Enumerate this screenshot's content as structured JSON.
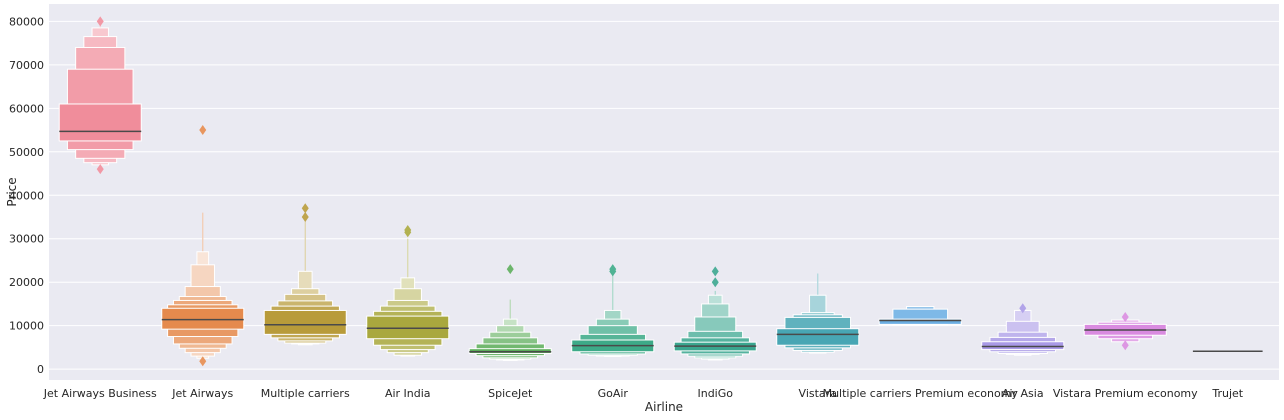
{
  "chart_data": {
    "type": "boxen",
    "xlabel": "Airline",
    "ylabel": "Price",
    "ylim": [
      -2500,
      84000
    ],
    "yticks": [
      0,
      10000,
      20000,
      30000,
      40000,
      50000,
      60000,
      70000,
      80000
    ],
    "grid": true,
    "legend": "none",
    "categories": [
      {
        "name": "Jet Airways Business",
        "color": "#f08d9b",
        "median": 54700,
        "levels": [
          [
            52500,
            61000
          ],
          [
            50500,
            69000
          ],
          [
            48500,
            74000
          ],
          [
            47500,
            76500
          ],
          [
            47000,
            78500
          ]
        ],
        "outliers": [
          46000,
          80000
        ],
        "whisker_max": 79500
      },
      {
        "name": "Jet Airways",
        "color": "#e58a4d",
        "median": 11400,
        "levels": [
          [
            9200,
            14000
          ],
          [
            7500,
            14800
          ],
          [
            5800,
            15800
          ],
          [
            4800,
            16700
          ],
          [
            3800,
            19000
          ],
          [
            3000,
            24000
          ],
          [
            2500,
            27000
          ]
        ],
        "outliers": [
          1800,
          55000
        ],
        "whisker_max": 36000
      },
      {
        "name": "Multiple carriers",
        "color": "#b89b3a",
        "median": 10200,
        "levels": [
          [
            8000,
            13500
          ],
          [
            7200,
            14500
          ],
          [
            6500,
            15700
          ],
          [
            6000,
            17200
          ],
          [
            5800,
            18500
          ],
          [
            5600,
            22500
          ]
        ],
        "outliers": [
          35000,
          37000
        ],
        "whisker_max": 34000
      },
      {
        "name": "Air India",
        "color": "#a9a83e",
        "median": 9400,
        "levels": [
          [
            7000,
            12200
          ],
          [
            5500,
            13300
          ],
          [
            4500,
            14500
          ],
          [
            3800,
            15800
          ],
          [
            3200,
            18500
          ],
          [
            3000,
            21000
          ]
        ],
        "outliers": [
          31500,
          32000
        ],
        "whisker_max": 30000
      },
      {
        "name": "SpiceJet",
        "color": "#5cad5a",
        "median": 4000,
        "levels": [
          [
            3600,
            4700
          ],
          [
            3100,
            5800
          ],
          [
            2600,
            7200
          ],
          [
            2300,
            8500
          ],
          [
            2100,
            10000
          ],
          [
            2000,
            11500
          ]
        ],
        "outliers": [
          23000
        ],
        "whisker_max": 16000
      },
      {
        "name": "GoAir",
        "color": "#3daa88",
        "median": 5400,
        "levels": [
          [
            4000,
            6700
          ],
          [
            3500,
            8000
          ],
          [
            3200,
            10000
          ],
          [
            3000,
            11500
          ],
          [
            2900,
            13500
          ]
        ],
        "outliers": [
          22500,
          23000
        ],
        "whisker_max": 22000
      },
      {
        "name": "IndiGo",
        "color": "#3aa68f",
        "median": 5300,
        "levels": [
          [
            4200,
            6200
          ],
          [
            3500,
            7200
          ],
          [
            3000,
            8700
          ],
          [
            2600,
            12000
          ],
          [
            2300,
            15000
          ],
          [
            2100,
            17000
          ]
        ],
        "outliers": [
          20000,
          22500
        ],
        "whisker_max": 18000
      },
      {
        "name": "Vistara",
        "color": "#48a6b4",
        "median": 8000,
        "levels": [
          [
            5500,
            9300
          ],
          [
            4900,
            11900
          ],
          [
            4300,
            12500
          ],
          [
            3900,
            13000
          ],
          [
            3700,
            17000
          ]
        ],
        "outliers": [],
        "whisker_max": 22000
      },
      {
        "name": "Multiple carriers Premium economy",
        "color": "#6baee3",
        "median": 11200,
        "levels": [
          [
            10300,
            11500
          ],
          [
            10200,
            13800
          ],
          [
            10100,
            14400
          ]
        ],
        "outliers": [],
        "whisker_max": 14400
      },
      {
        "name": "Air Asia",
        "color": "#a99ae6",
        "median": 5200,
        "levels": [
          [
            4500,
            6300
          ],
          [
            4000,
            7300
          ],
          [
            3600,
            8500
          ],
          [
            3400,
            11000
          ],
          [
            3200,
            13500
          ]
        ],
        "outliers": [
          14000
        ],
        "whisker_max": 13500
      },
      {
        "name": "Vistara Premium economy",
        "color": "#d98be0",
        "median": 9000,
        "levels": [
          [
            7800,
            10300
          ],
          [
            7000,
            10800
          ],
          [
            6300,
            11300
          ]
        ],
        "outliers": [
          5500,
          12000
        ],
        "whisker_max": 11300
      },
      {
        "name": "Trujet",
        "color": "#e48ab6",
        "median": 4100,
        "levels": [],
        "outliers": [],
        "whisker_max": 4100
      }
    ]
  }
}
